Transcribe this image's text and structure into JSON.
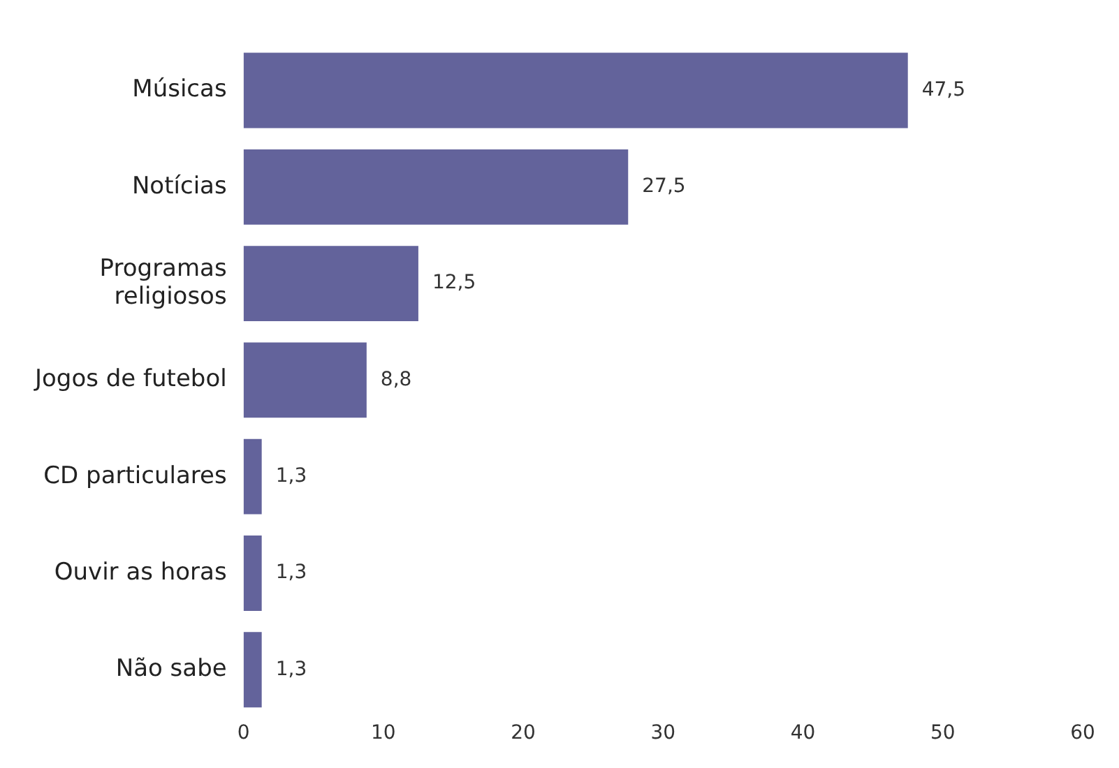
{
  "chart_data": {
    "type": "bar",
    "orientation": "horizontal",
    "categories": [
      "Músicas",
      "Notícias",
      "Programas religiosos",
      "Jogos de futebol",
      "CD particulares",
      "Ouvir as horas",
      "Não sabe"
    ],
    "values": [
      47.5,
      27.5,
      12.5,
      8.8,
      1.3,
      1.3,
      1.3
    ],
    "value_labels": [
      "47,5",
      "27,5",
      "12,5",
      "8,8",
      "1,3",
      "1,3",
      "1,3"
    ],
    "color": "#63639b",
    "xlim": [
      0,
      60
    ],
    "xticks": [
      0,
      10,
      20,
      30,
      40,
      50,
      60
    ],
    "grid": false,
    "legend": false
  }
}
